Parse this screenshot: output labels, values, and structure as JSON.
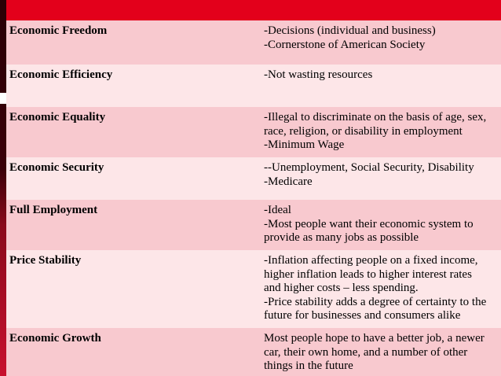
{
  "rows": [
    {
      "term": "Economic Freedom",
      "lines": [
        "-Decisions (individual and business)",
        "-Cornerstone of American Society"
      ]
    },
    {
      "term": "Economic Efficiency",
      "lines": [
        "-Not wasting resources"
      ]
    },
    {
      "term": "Economic Equality",
      "lines": [
        "-Illegal to discriminate on the basis of age, sex,",
        "race, religion, or disability in employment",
        "-Minimum Wage"
      ]
    },
    {
      "term": "Economic Security",
      "lines": [
        "--Unemployment, Social Security, Disability",
        "-Medicare"
      ]
    },
    {
      "term": "Full Employment",
      "lines": [
        "-Ideal",
        "-Most people want their economic system to",
        "provide as many jobs as possible"
      ]
    },
    {
      "term": "Price Stability",
      "lines": [
        "-Inflation affecting people on a fixed income,",
        "higher inflation leads to higher interest rates",
        "and higher costs – less spending.",
        "-Price stability adds a degree of certainty to the",
        "future for businesses and consumers alike"
      ]
    },
    {
      "term": "Economic Growth",
      "lines": [
        "Most people hope to have a better job, a newer",
        "car, their own home, and a number of other",
        "things in the future"
      ]
    }
  ]
}
